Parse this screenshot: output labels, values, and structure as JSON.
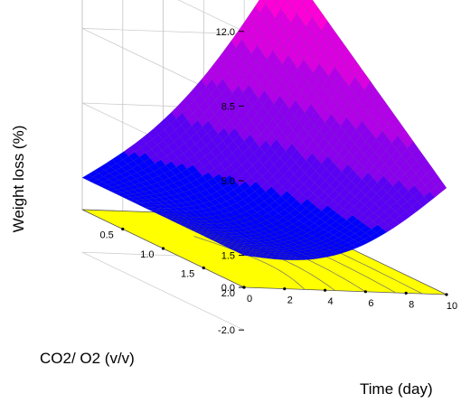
{
  "chart_data": {
    "type": "surface-3d",
    "title": "",
    "xlabel": "Time (day)",
    "ylabel": "CO2/ O2 (v/v)",
    "zlabel": "Weight loss (%)",
    "x": {
      "range": [
        0,
        10
      ],
      "ticks": [
        0,
        2,
        4,
        6,
        8,
        10
      ],
      "tick_labels": [
        "0",
        "2",
        "4",
        "6",
        "8",
        "10"
      ]
    },
    "y": {
      "range": [
        0.0,
        2.0
      ],
      "ticks": [
        0.5,
        1.0,
        1.5,
        2.0
      ],
      "tick_labels": [
        "0.5",
        "1.0",
        "1.5",
        "2.0"
      ]
    },
    "z": {
      "range": [
        -2.0,
        12.0
      ],
      "ticks": [
        -2.0,
        1.5,
        5.0,
        8.5,
        12.0
      ],
      "tick_labels": [
        "-2.0",
        "1.5",
        "5.0",
        "8.5",
        "12.0"
      ],
      "floor_value": 0.0,
      "floor_label": "0.0"
    },
    "corner_values": [
      {
        "x": 0,
        "y": 0.0,
        "z": 1.5
      },
      {
        "x": 10,
        "y": 0.0,
        "z": 12.0
      },
      {
        "x": 10,
        "y": 2.0,
        "z": 5.0
      },
      {
        "x": 0,
        "y": 2.0,
        "z": 1.5
      }
    ],
    "surface_colors": [
      "#0000ff",
      "#5a00f5",
      "#8a00ee",
      "#b400e8",
      "#dc00e0",
      "#ff00d8"
    ],
    "floor_color": "#ffff00",
    "grid": true
  }
}
